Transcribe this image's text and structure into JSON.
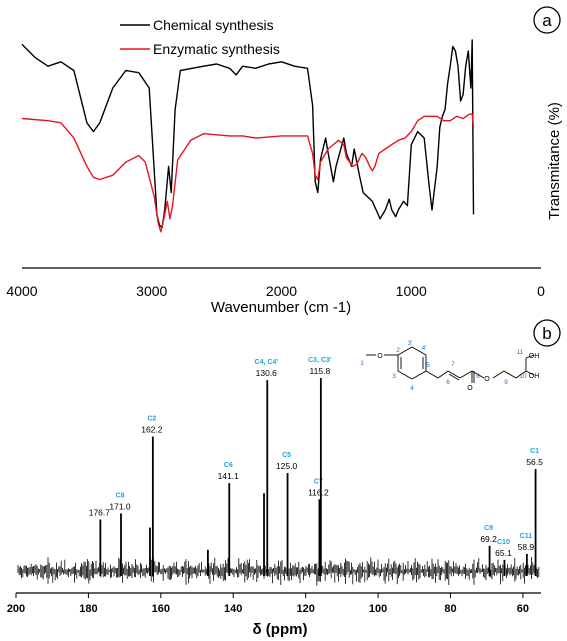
{
  "chart_data": [
    {
      "type": "line",
      "panel_label": "a",
      "xlabel": "Wavenumber (cm -1)",
      "ylabel": "Transmitance (%)",
      "xlim": [
        4000,
        0
      ],
      "x_ticks": [
        "4000",
        "3000",
        "2000",
        "1000",
        "0"
      ],
      "x_tick_values": [
        4000,
        3000,
        2000,
        1000,
        0
      ],
      "legend_position": "top-left",
      "series": [
        {
          "name": "Chemical synthesis",
          "color": "#000000",
          "points": [
            [
              4000,
              0.98
            ],
            [
              3900,
              0.92
            ],
            [
              3800,
              0.88
            ],
            [
              3700,
              0.9
            ],
            [
              3600,
              0.86
            ],
            [
              3500,
              0.62
            ],
            [
              3450,
              0.58
            ],
            [
              3400,
              0.62
            ],
            [
              3300,
              0.78
            ],
            [
              3200,
              0.86
            ],
            [
              3100,
              0.85
            ],
            [
              3020,
              0.78
            ],
            [
              2960,
              0.2
            ],
            [
              2940,
              0.15
            ],
            [
              2920,
              0.14
            ],
            [
              2900,
              0.22
            ],
            [
              2870,
              0.42
            ],
            [
              2850,
              0.3
            ],
            [
              2820,
              0.68
            ],
            [
              2780,
              0.86
            ],
            [
              2600,
              0.88
            ],
            [
              2500,
              0.89
            ],
            [
              2400,
              0.87
            ],
            [
              2350,
              0.84
            ],
            [
              2300,
              0.88
            ],
            [
              2200,
              0.87
            ],
            [
              2100,
              0.89
            ],
            [
              2000,
              0.9
            ],
            [
              1900,
              0.88
            ],
            [
              1800,
              0.87
            ],
            [
              1760,
              0.7
            ],
            [
              1740,
              0.35
            ],
            [
              1720,
              0.3
            ],
            [
              1700,
              0.45
            ],
            [
              1660,
              0.55
            ],
            [
              1640,
              0.48
            ],
            [
              1600,
              0.35
            ],
            [
              1580,
              0.42
            ],
            [
              1520,
              0.55
            ],
            [
              1500,
              0.48
            ],
            [
              1460,
              0.42
            ],
            [
              1440,
              0.5
            ],
            [
              1400,
              0.38
            ],
            [
              1370,
              0.3
            ],
            [
              1300,
              0.26
            ],
            [
              1270,
              0.22
            ],
            [
              1240,
              0.18
            ],
            [
              1200,
              0.22
            ],
            [
              1170,
              0.27
            ],
            [
              1150,
              0.22
            ],
            [
              1120,
              0.19
            ],
            [
              1100,
              0.22
            ],
            [
              1060,
              0.26
            ],
            [
              1030,
              0.24
            ],
            [
              1000,
              0.52
            ],
            [
              950,
              0.58
            ],
            [
              900,
              0.55
            ],
            [
              860,
              0.32
            ],
            [
              840,
              0.22
            ],
            [
              800,
              0.42
            ],
            [
              780,
              0.6
            ],
            [
              760,
              0.65
            ],
            [
              740,
              0.68
            ],
            [
              720,
              0.8
            ],
            [
              700,
              0.88
            ],
            [
              680,
              0.97
            ],
            [
              660,
              0.95
            ],
            [
              640,
              0.88
            ],
            [
              620,
              0.72
            ],
            [
              600,
              0.75
            ],
            [
              580,
              0.88
            ],
            [
              560,
              0.95
            ],
            [
              540,
              0.78
            ],
            [
              530,
              1.0
            ],
            [
              520,
              0.2
            ]
          ]
        },
        {
          "name": "Enzymatic synthesis",
          "color": "#e8141e",
          "points": [
            [
              4000,
              0.64
            ],
            [
              3800,
              0.63
            ],
            [
              3700,
              0.62
            ],
            [
              3600,
              0.55
            ],
            [
              3500,
              0.42
            ],
            [
              3450,
              0.37
            ],
            [
              3400,
              0.36
            ],
            [
              3300,
              0.38
            ],
            [
              3200,
              0.44
            ],
            [
              3100,
              0.47
            ],
            [
              3050,
              0.44
            ],
            [
              2980,
              0.28
            ],
            [
              2950,
              0.16
            ],
            [
              2930,
              0.12
            ],
            [
              2910,
              0.17
            ],
            [
              2880,
              0.26
            ],
            [
              2860,
              0.18
            ],
            [
              2840,
              0.24
            ],
            [
              2800,
              0.45
            ],
            [
              2700,
              0.54
            ],
            [
              2600,
              0.57
            ],
            [
              2400,
              0.56
            ],
            [
              2300,
              0.56
            ],
            [
              2200,
              0.55
            ],
            [
              2000,
              0.56
            ],
            [
              1900,
              0.56
            ],
            [
              1800,
              0.56
            ],
            [
              1760,
              0.48
            ],
            [
              1740,
              0.38
            ],
            [
              1720,
              0.36
            ],
            [
              1700,
              0.44
            ],
            [
              1660,
              0.48
            ],
            [
              1640,
              0.5
            ],
            [
              1600,
              0.52
            ],
            [
              1560,
              0.54
            ],
            [
              1520,
              0.52
            ],
            [
              1500,
              0.46
            ],
            [
              1450,
              0.42
            ],
            [
              1420,
              0.43
            ],
            [
              1380,
              0.48
            ],
            [
              1350,
              0.46
            ],
            [
              1320,
              0.42
            ],
            [
              1300,
              0.4
            ],
            [
              1280,
              0.42
            ],
            [
              1250,
              0.48
            ],
            [
              1200,
              0.5
            ],
            [
              1150,
              0.52
            ],
            [
              1100,
              0.54
            ],
            [
              1050,
              0.55
            ],
            [
              1000,
              0.58
            ],
            [
              950,
              0.63
            ],
            [
              900,
              0.65
            ],
            [
              800,
              0.65
            ],
            [
              750,
              0.63
            ],
            [
              700,
              0.63
            ],
            [
              650,
              0.65
            ],
            [
              600,
              0.64
            ],
            [
              550,
              0.66
            ],
            [
              530,
              0.66
            ],
            [
              520,
              0.6
            ]
          ]
        }
      ]
    },
    {
      "type": "bar",
      "panel_label": "b",
      "xlabel": "δ (ppm)",
      "xlim": [
        200,
        55
      ],
      "x_ticks": [
        "200",
        "180",
        "160",
        "140",
        "120",
        "100",
        "80",
        "60"
      ],
      "x_tick_values": [
        200,
        180,
        160,
        140,
        120,
        100,
        80,
        60
      ],
      "peaks": [
        {
          "ppm": 176.7,
          "height": 0.25,
          "value_label": "176.7",
          "assignment": ""
        },
        {
          "ppm": 171.0,
          "height": 0.28,
          "value_label": "171.0",
          "assignment": "C8"
        },
        {
          "ppm": 163.0,
          "height": 0.21,
          "value_label": "",
          "assignment": ""
        },
        {
          "ppm": 162.2,
          "height": 0.66,
          "value_label": "162.2",
          "assignment": "C2"
        },
        {
          "ppm": 147.0,
          "height": 0.1,
          "value_label": "",
          "assignment": ""
        },
        {
          "ppm": 141.1,
          "height": 0.43,
          "value_label": "141.1",
          "assignment": "C6"
        },
        {
          "ppm": 131.5,
          "height": 0.38,
          "value_label": "",
          "assignment": ""
        },
        {
          "ppm": 130.6,
          "height": 0.94,
          "value_label": "130.6",
          "assignment": "C4, C4'"
        },
        {
          "ppm": 125.0,
          "height": 0.48,
          "value_label": "125.0",
          "assignment": "C5"
        },
        {
          "ppm": 116.2,
          "height": 0.35,
          "value_label": "116.2",
          "assignment": "C7"
        },
        {
          "ppm": 115.8,
          "height": 0.95,
          "value_label": "115.8",
          "assignment": "C3, C3'"
        },
        {
          "ppm": 69.2,
          "height": 0.12,
          "value_label": "69.2",
          "assignment": "C9"
        },
        {
          "ppm": 65.1,
          "height": 0.05,
          "value_label": "65.1",
          "assignment": "C10"
        },
        {
          "ppm": 58.9,
          "height": 0.08,
          "value_label": "58.9",
          "assignment": "C11"
        },
        {
          "ppm": 56.5,
          "height": 0.5,
          "value_label": "56.5",
          "assignment": "C1"
        }
      ]
    }
  ],
  "molecule_labels": [
    "1",
    "2",
    "3'",
    "3",
    "4",
    "4'",
    "5",
    "6",
    "7",
    "8",
    "9",
    "10",
    "11",
    "O",
    "O",
    "O",
    "O",
    "OH",
    "OH"
  ]
}
